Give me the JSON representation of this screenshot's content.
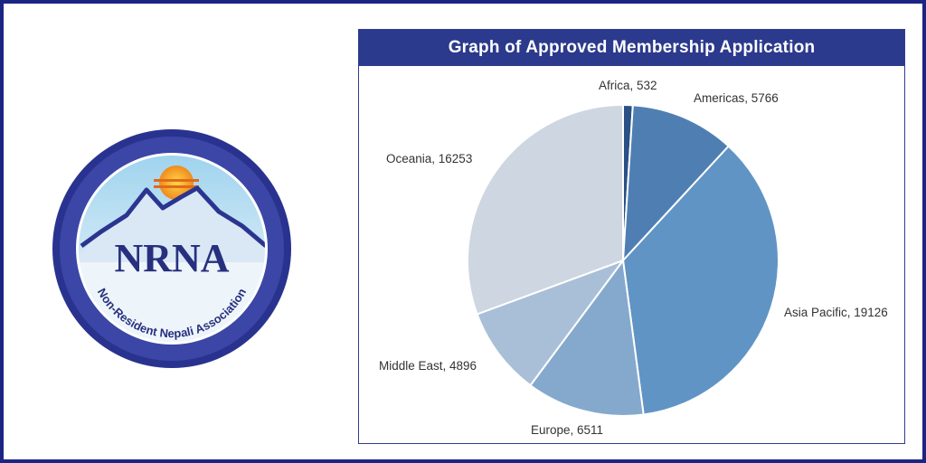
{
  "logo": {
    "acronym": "NRNA",
    "full_name": "Non-Resident Nepali Association"
  },
  "chart_data": {
    "type": "pie",
    "title": "Graph of Approved  Membership Application",
    "slices": [
      {
        "label": "Africa",
        "value": 532,
        "color": "#2a5085"
      },
      {
        "label": "Americas",
        "value": 5766,
        "color": "#4f7fb2"
      },
      {
        "label": "Asia Pacific",
        "value": 19126,
        "color": "#6094c4"
      },
      {
        "label": "Europe",
        "value": 6511,
        "color": "#85a9cd"
      },
      {
        "label": "Middle East",
        "value": 4896,
        "color": "#a9bfd7"
      },
      {
        "label": "Oceania",
        "value": 16253,
        "color": "#cdd6e1"
      }
    ],
    "label_format": "{label}, {value}",
    "legend": "none"
  }
}
